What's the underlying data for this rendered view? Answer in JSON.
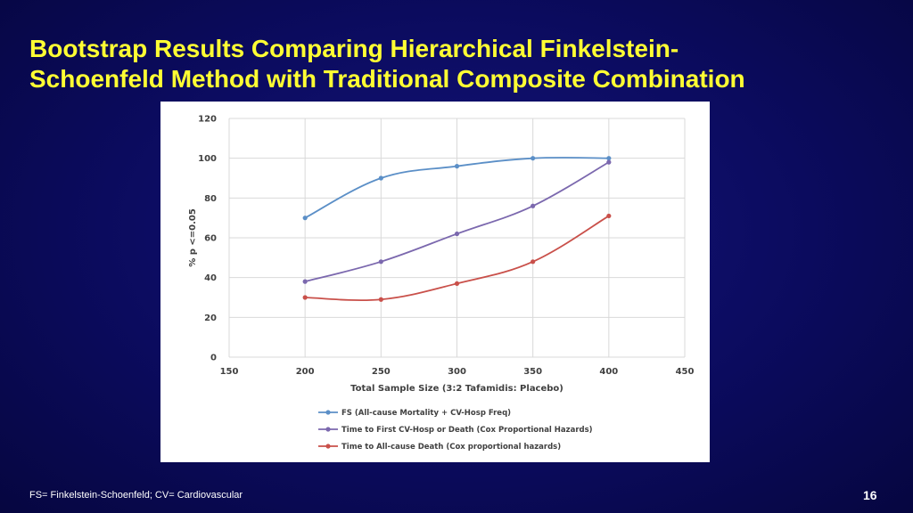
{
  "slide": {
    "title_line1": "Bootstrap Results Comparing Hierarchical Finkelstein-",
    "title_line2": "Schoenfeld Method with Traditional Composite Combination",
    "footnote": "FS= Finkelstein-Schoenfeld; CV= Cardiovascular",
    "page_number": "16",
    "title_color": "#ffff33",
    "background_color": "#0b0b5e"
  },
  "chart_data": {
    "type": "line",
    "title": "",
    "xlabel": "Total Sample Size (3:2 Tafamidis: Placebo)",
    "ylabel": "% p <=0.05",
    "xlim": [
      150,
      450
    ],
    "ylim": [
      0,
      120
    ],
    "x_ticks": [
      "150",
      "200",
      "250",
      "300",
      "350",
      "400",
      "450"
    ],
    "y_ticks": [
      "0",
      "20",
      "40",
      "60",
      "80",
      "100",
      "120"
    ],
    "grid": true,
    "smooth": true,
    "legend_position": "bottom",
    "x": [
      200,
      250,
      300,
      350,
      400
    ],
    "series": [
      {
        "name": "FS (All-cause Mortality + CV-Hosp Freq)",
        "color": "#5b8fc7",
        "values": [
          70,
          90,
          96,
          100,
          100
        ]
      },
      {
        "name": "Time to First CV-Hosp or Death (Cox Proportional Hazards)",
        "color": "#7b68ae",
        "values": [
          38,
          48,
          62,
          76,
          98
        ]
      },
      {
        "name": "Time to All-cause Death (Cox proportional hazards)",
        "color": "#c9504a",
        "values": [
          30,
          29,
          37,
          48,
          71
        ]
      }
    ]
  }
}
